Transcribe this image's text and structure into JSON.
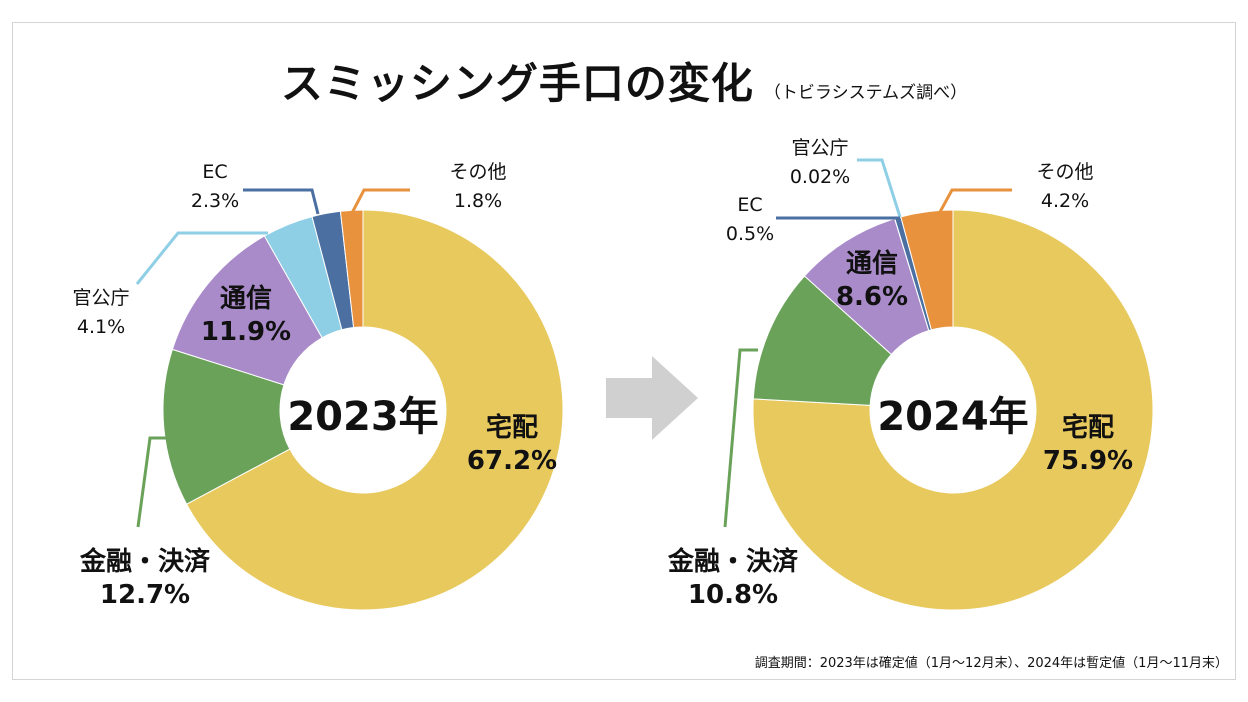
{
  "title": "スミッシング手口の変化",
  "subtitle": "（トビラシステムズ調べ）",
  "footnote": "調査期間：2023年は確定値（1月～12月末）、2024年は暫定値（1月～11月末）",
  "chart_data": [
    {
      "type": "pie",
      "donut": true,
      "center_label": "2023年",
      "categories": [
        "宅配",
        "金融・決済",
        "通信",
        "官公庁",
        "EC",
        "その他"
      ],
      "values": [
        67.2,
        12.7,
        11.9,
        4.1,
        2.3,
        1.8
      ],
      "value_labels": [
        "67.2%",
        "12.7%",
        "11.9%",
        "4.1%",
        "2.3%",
        "1.8%"
      ]
    },
    {
      "type": "pie",
      "donut": true,
      "center_label": "2024年",
      "categories": [
        "宅配",
        "金融・決済",
        "通信",
        "官公庁",
        "EC",
        "その他"
      ],
      "values": [
        75.9,
        10.8,
        8.6,
        0.02,
        0.5,
        4.2
      ],
      "value_labels": [
        "75.9%",
        "10.8%",
        "8.6%",
        "0.02%",
        "0.5%",
        "4.2%"
      ]
    }
  ],
  "colors": [
    "#E8C95E",
    "#6AA25A",
    "#A98BC9",
    "#8ECFE6",
    "#4A6FA0",
    "#E8923E"
  ],
  "arrow_color": "#D0D0D0"
}
